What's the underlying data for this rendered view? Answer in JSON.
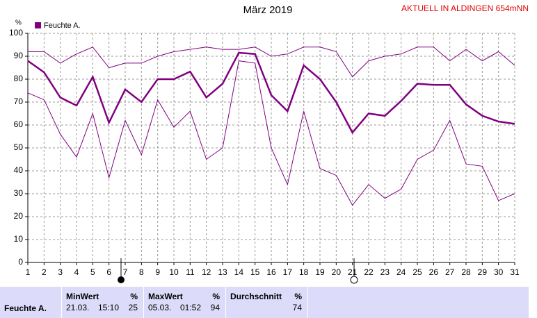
{
  "chart_data": {
    "type": "line",
    "title": "März 2019",
    "annotation": "AKTUELL IN ALDINGEN 654mNN",
    "y_label": "%",
    "x": [
      1,
      2,
      3,
      4,
      5,
      6,
      7,
      8,
      9,
      10,
      11,
      12,
      13,
      14,
      15,
      16,
      17,
      18,
      19,
      20,
      21,
      22,
      23,
      24,
      25,
      26,
      27,
      28,
      29,
      30,
      31
    ],
    "xlim": [
      1,
      31
    ],
    "xticks": [
      1,
      2,
      3,
      4,
      5,
      6,
      7,
      8,
      9,
      10,
      11,
      12,
      13,
      14,
      15,
      16,
      17,
      18,
      19,
      20,
      21,
      22,
      23,
      24,
      25,
      26,
      27,
      28,
      29,
      30,
      31
    ],
    "ylim": [
      0,
      100
    ],
    "yticks": [
      0,
      10,
      20,
      30,
      40,
      50,
      60,
      70,
      80,
      90,
      100
    ],
    "grid": true,
    "series": [
      {
        "name": "Feuchte A.",
        "color": "#800080",
        "values": [
          88,
          83,
          72,
          68.5,
          81,
          61,
          75.5,
          70,
          80,
          80,
          83.3,
          72,
          78,
          91.5,
          91,
          73,
          66,
          86,
          80,
          70,
          56.7,
          65,
          64,
          70.5,
          78,
          77.5,
          77.5,
          69,
          64,
          61.5,
          60.5
        ]
      },
      {
        "color": "#800080",
        "values": [
          92,
          92,
          87,
          91,
          94,
          85,
          87,
          87,
          90,
          92,
          93,
          94,
          93,
          93,
          94,
          90,
          91,
          94,
          94,
          92,
          81,
          88,
          90,
          91,
          94,
          94,
          88,
          93,
          88,
          92,
          86
        ]
      },
      {
        "color": "#800080",
        "values": [
          74,
          71,
          56,
          46,
          65,
          37,
          62,
          47,
          71,
          59,
          66,
          45,
          50,
          88,
          87,
          50,
          34,
          66,
          41,
          38,
          25,
          34,
          28,
          32,
          45,
          49,
          62,
          43,
          42,
          27,
          30
        ]
      }
    ]
  },
  "stats": {
    "row_label": "Feuchte A.",
    "columns": [
      {
        "header": "MinWert",
        "unit": "%",
        "date": "21.03.",
        "time": "15:10",
        "value": 25
      },
      {
        "header": "MaxWert",
        "unit": "%",
        "date": "05.03.",
        "time": "01:52",
        "value": 94
      },
      {
        "header": "Durchschnitt",
        "unit": "%",
        "value": 74
      }
    ]
  }
}
